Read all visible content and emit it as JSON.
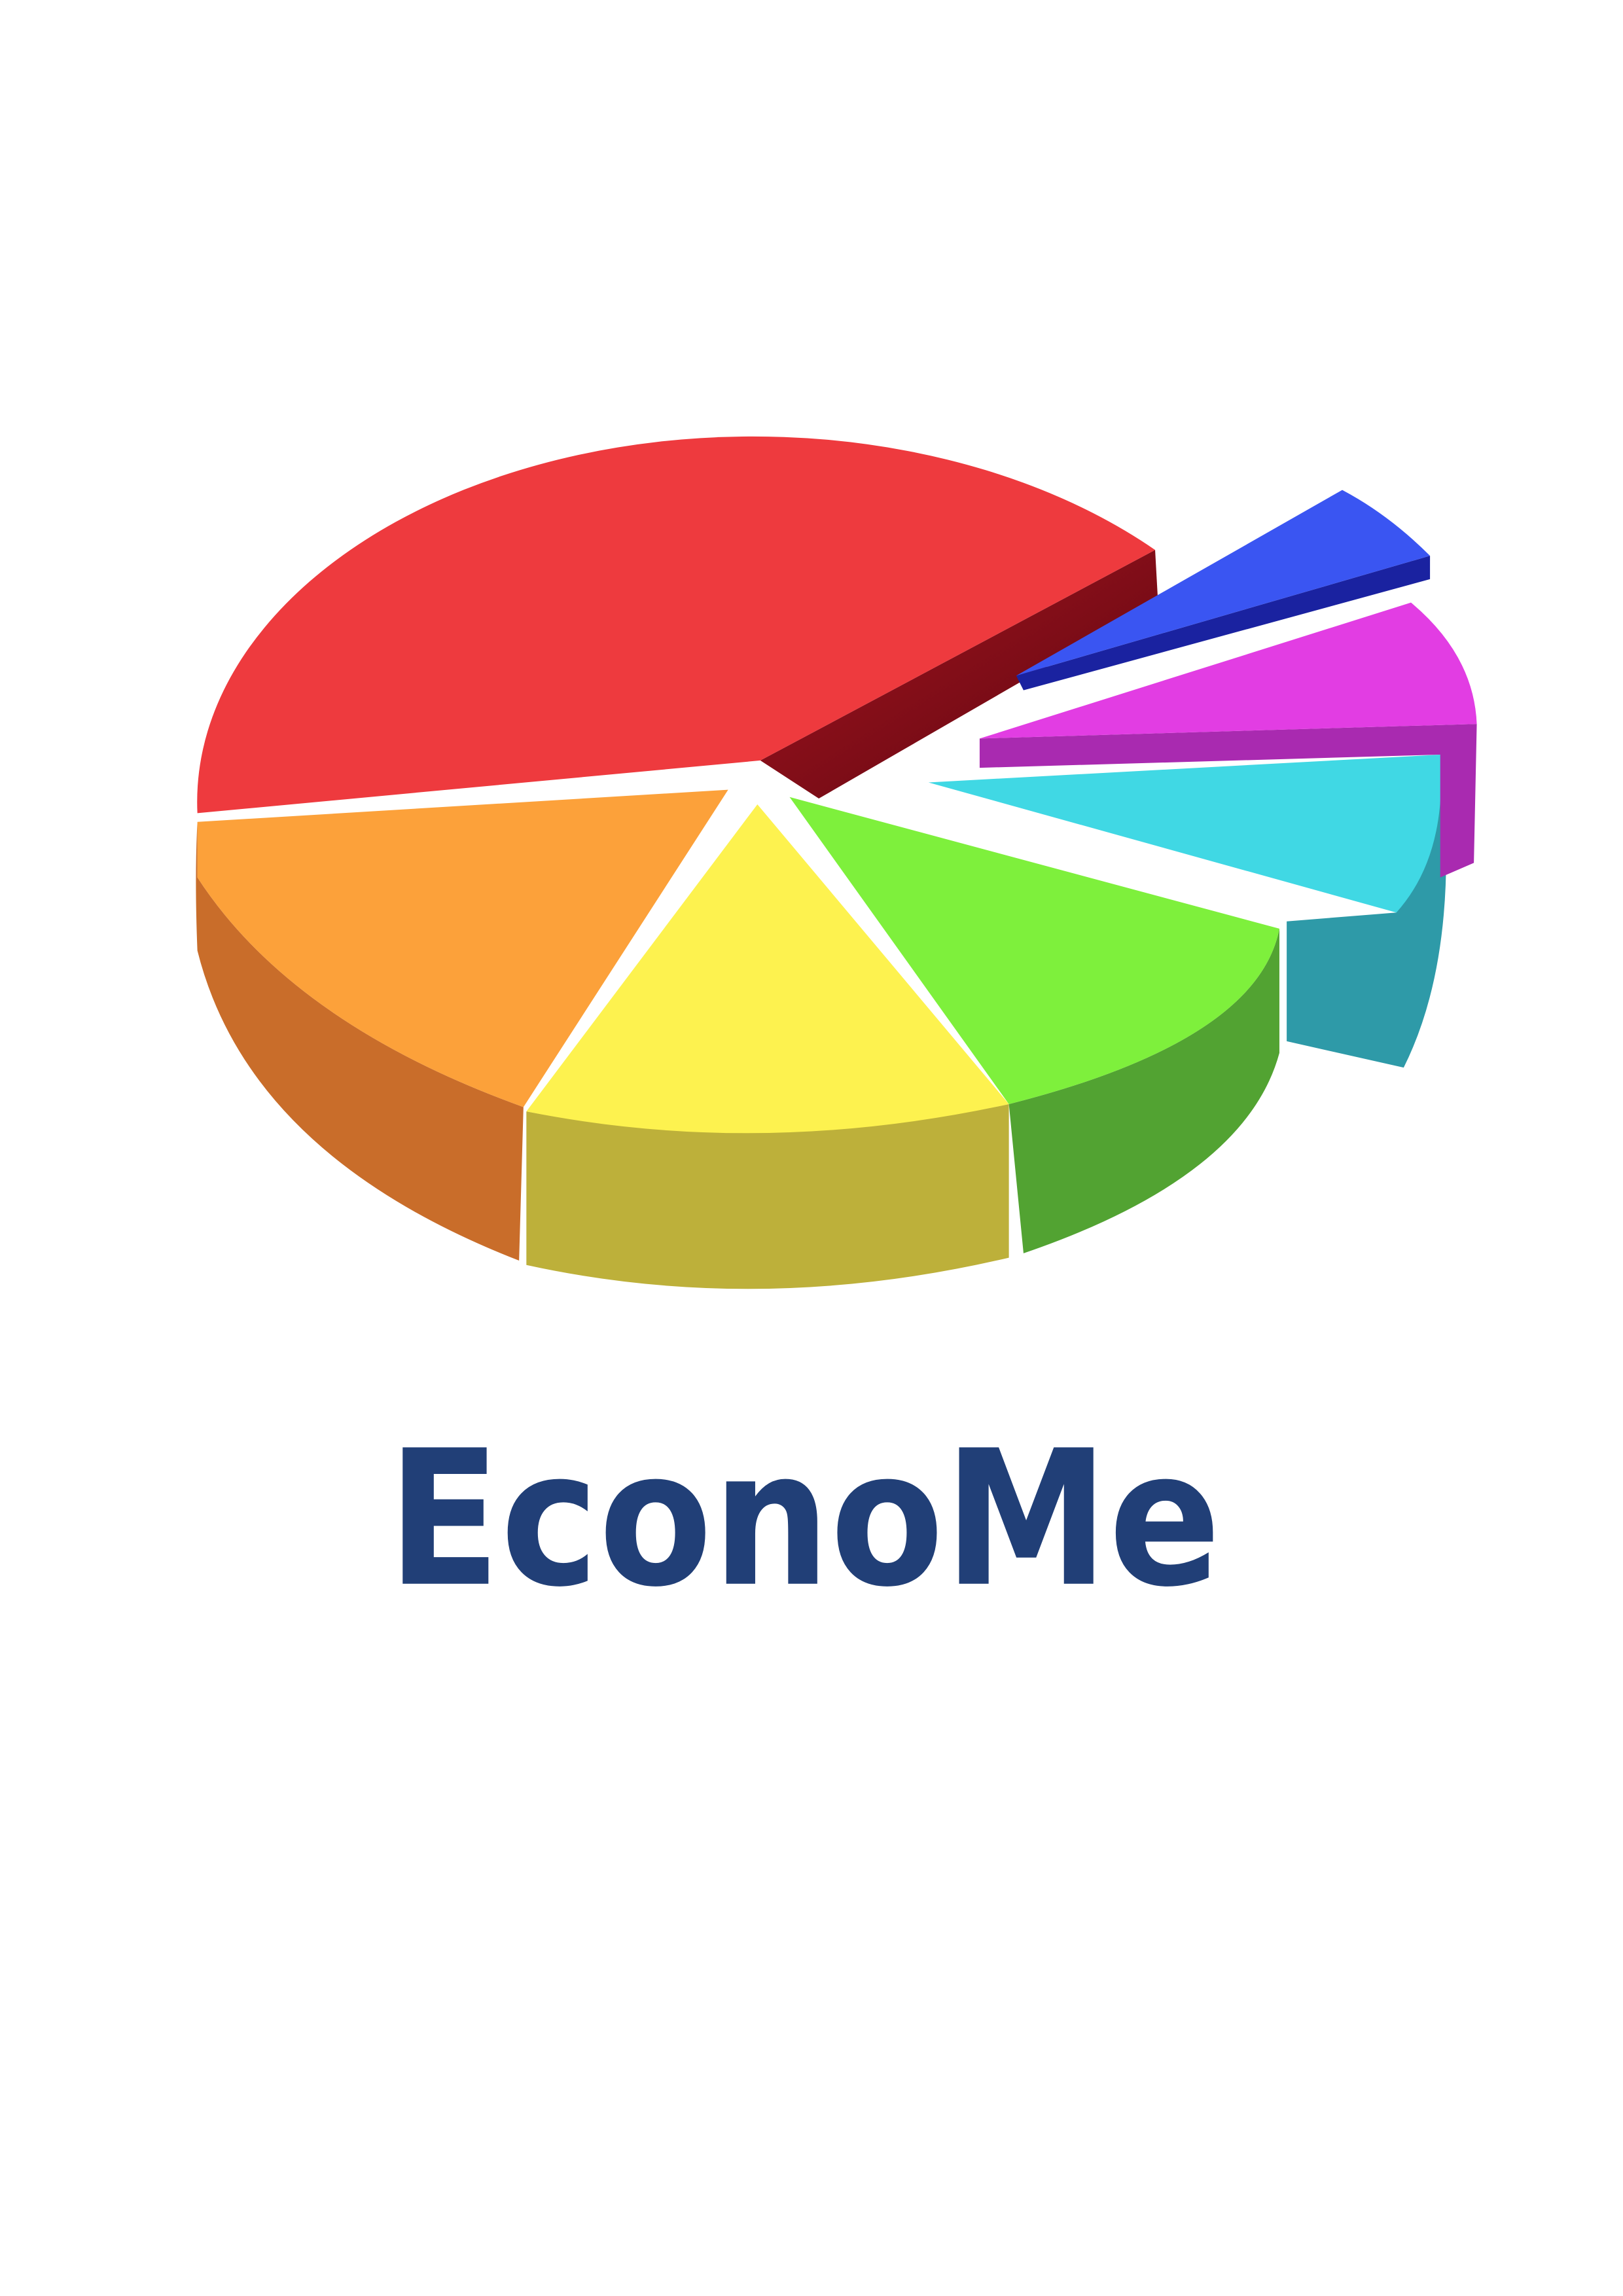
{
  "title": "EconoMe"
}
